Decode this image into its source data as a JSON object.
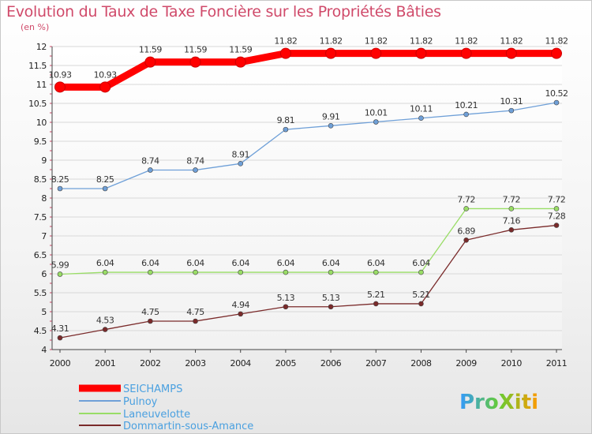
{
  "chart_data": {
    "type": "line",
    "title": "Evolution du Taux de Taxe Foncière sur les Propriétés Bâties",
    "ylabel": "(en %)",
    "xlabel": "",
    "ylim": [
      4,
      12
    ],
    "yticks": [
      "4",
      "4.5",
      "5",
      "5.5",
      "6",
      "6.5",
      "7",
      "7.5",
      "8",
      "8.5",
      "9",
      "9.5",
      "10",
      "10.5",
      "11",
      "11.5",
      "12"
    ],
    "categories": [
      "2000",
      "2001",
      "2002",
      "2003",
      "2004",
      "2005",
      "2006",
      "2007",
      "2008",
      "2009",
      "2010",
      "2011"
    ],
    "series": [
      {
        "name": "SEICHAMPS",
        "color": "#ff0000",
        "values": [
          10.93,
          10.93,
          11.59,
          11.59,
          11.59,
          11.82,
          11.82,
          11.82,
          11.82,
          11.82,
          11.82,
          11.82
        ],
        "labels": [
          "10.93",
          "10.93",
          "11.59",
          "11.59",
          "11.59",
          "11.82",
          "11.82",
          "11.82",
          "11.82",
          "11.82",
          "11.82",
          "11.82"
        ]
      },
      {
        "name": "Pulnoy",
        "color": "#6fa0d8",
        "values": [
          8.25,
          8.25,
          8.74,
          8.74,
          8.91,
          9.81,
          9.91,
          10.01,
          10.11,
          10.21,
          10.31,
          10.52
        ],
        "labels": [
          "8.25",
          "8.25",
          "8.74",
          "8.74",
          "8.91",
          "9.81",
          "9.91",
          "10.01",
          "10.11",
          "10.21",
          "10.31",
          "10.52"
        ]
      },
      {
        "name": "Laneuvelotte",
        "color": "#99dd66",
        "values": [
          5.99,
          6.04,
          6.04,
          6.04,
          6.04,
          6.04,
          6.04,
          6.04,
          6.04,
          7.72,
          7.72,
          7.72
        ],
        "labels": [
          "5.99",
          "6.04",
          "6.04",
          "6.04",
          "6.04",
          "6.04",
          "6.04",
          "6.04",
          "6.04",
          "7.72",
          "7.72",
          "7.72"
        ]
      },
      {
        "name": "Dommartin-sous-Amance",
        "color": "#7a2a2a",
        "values": [
          4.31,
          4.53,
          4.75,
          4.75,
          4.94,
          5.13,
          5.13,
          5.21,
          5.21,
          6.89,
          7.16,
          7.28
        ],
        "labels": [
          "4.31",
          "4.53",
          "4.75",
          "4.75",
          "4.94",
          "5.13",
          "5.13",
          "5.21",
          "5.21",
          "6.89",
          "7.16",
          "7.28"
        ]
      }
    ]
  },
  "logo": {
    "text": "ProXiti"
  }
}
